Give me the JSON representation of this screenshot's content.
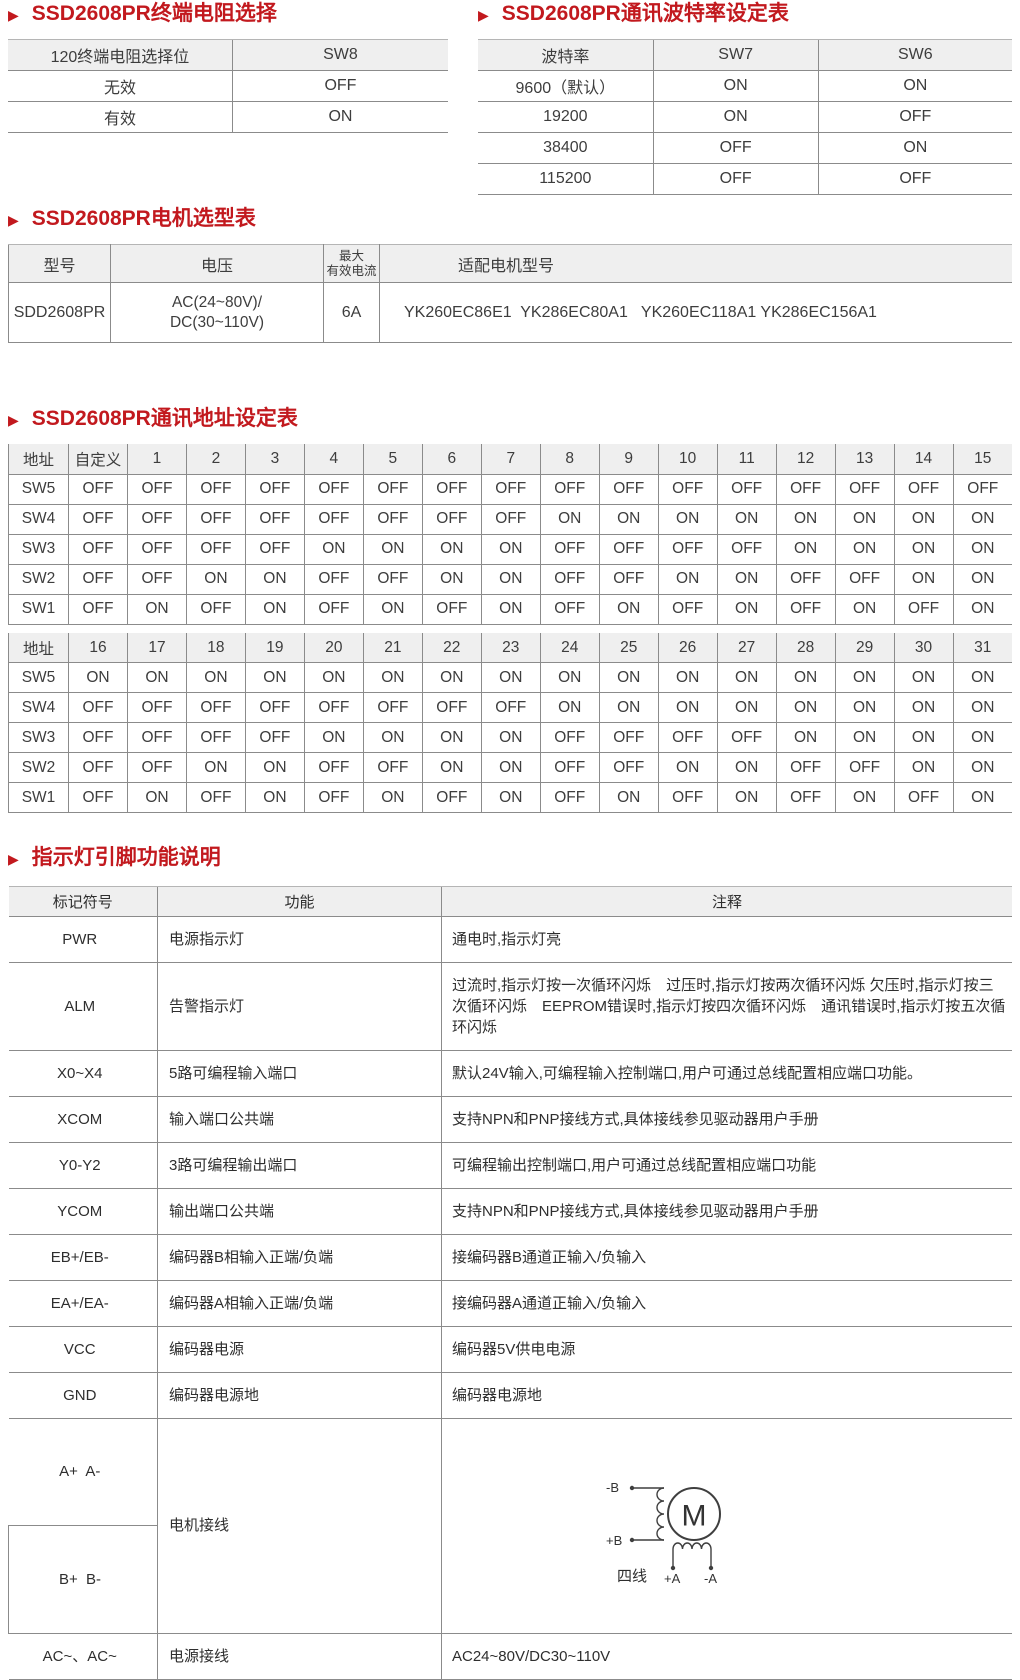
{
  "page": {
    "background": "#ffffff",
    "accent_color": "#c2191e"
  },
  "sections": {
    "terminal": {
      "title": "SSD2608PR终端电阻选择",
      "headers": [
        "120终端电阻选择位",
        "SW8"
      ],
      "rows": [
        [
          "无效",
          "OFF"
        ],
        [
          "有效",
          "ON"
        ]
      ]
    },
    "baud": {
      "title": "SSD2608PR通讯波特率设定表",
      "headers": [
        "波特率",
        "SW7",
        "SW6"
      ],
      "rows": [
        [
          "9600（默认）",
          "ON",
          "ON"
        ],
        [
          "19200",
          "ON",
          "OFF"
        ],
        [
          "38400",
          "OFF",
          "ON"
        ],
        [
          "115200",
          "OFF",
          "OFF"
        ]
      ]
    },
    "motor": {
      "title": "SSD2608PR电机选型表",
      "headers": [
        "型号",
        "电压",
        "最大\n有效电流",
        "适配电机型号"
      ],
      "rows": [
        [
          "SDD2608PR",
          "AC(24~80V)/\nDC(30~110V)",
          "6A",
          "YK260EC86E1  YK286EC80A1   YK260EC118A1 YK286EC156A1"
        ]
      ]
    },
    "address": {
      "title": "SSD2608PR通讯地址设定表",
      "section1": {
        "headers": [
          "地址",
          "自定义",
          "1",
          "2",
          "3",
          "4",
          "5",
          "6",
          "7",
          "8",
          "9",
          "10",
          "11",
          "12",
          "13",
          "14",
          "15"
        ],
        "rows": [
          [
            "SW5",
            "OFF",
            "OFF",
            "OFF",
            "OFF",
            "OFF",
            "OFF",
            "OFF",
            "OFF",
            "OFF",
            "OFF",
            "OFF",
            "OFF",
            "OFF",
            "OFF",
            "OFF",
            "OFF"
          ],
          [
            "SW4",
            "OFF",
            "OFF",
            "OFF",
            "OFF",
            "OFF",
            "OFF",
            "OFF",
            "OFF",
            "ON",
            "ON",
            "ON",
            "ON",
            "ON",
            "ON",
            "ON",
            "ON"
          ],
          [
            "SW3",
            "OFF",
            "OFF",
            "OFF",
            "OFF",
            "ON",
            "ON",
            "ON",
            "ON",
            "OFF",
            "OFF",
            "OFF",
            "OFF",
            "ON",
            "ON",
            "ON",
            "ON"
          ],
          [
            "SW2",
            "OFF",
            "OFF",
            "ON",
            "ON",
            "OFF",
            "OFF",
            "ON",
            "ON",
            "OFF",
            "OFF",
            "ON",
            "ON",
            "OFF",
            "OFF",
            "ON",
            "ON"
          ],
          [
            "SW1",
            "OFF",
            "ON",
            "OFF",
            "ON",
            "OFF",
            "ON",
            "OFF",
            "ON",
            "OFF",
            "ON",
            "OFF",
            "ON",
            "OFF",
            "ON",
            "OFF",
            "ON"
          ]
        ]
      },
      "section2": {
        "headers": [
          "地址",
          "16",
          "17",
          "18",
          "19",
          "20",
          "21",
          "22",
          "23",
          "24",
          "25",
          "26",
          "27",
          "28",
          "29",
          "30",
          "31"
        ],
        "rows": [
          [
            "SW5",
            "ON",
            "ON",
            "ON",
            "ON",
            "ON",
            "ON",
            "ON",
            "ON",
            "ON",
            "ON",
            "ON",
            "ON",
            "ON",
            "ON",
            "ON",
            "ON"
          ],
          [
            "SW4",
            "OFF",
            "OFF",
            "OFF",
            "OFF",
            "OFF",
            "OFF",
            "OFF",
            "OFF",
            "ON",
            "ON",
            "ON",
            "ON",
            "ON",
            "ON",
            "ON",
            "ON"
          ],
          [
            "SW3",
            "OFF",
            "OFF",
            "OFF",
            "OFF",
            "ON",
            "ON",
            "ON",
            "ON",
            "OFF",
            "OFF",
            "OFF",
            "OFF",
            "ON",
            "ON",
            "ON",
            "ON"
          ],
          [
            "SW2",
            "OFF",
            "OFF",
            "ON",
            "ON",
            "OFF",
            "OFF",
            "ON",
            "ON",
            "OFF",
            "OFF",
            "ON",
            "ON",
            "OFF",
            "OFF",
            "ON",
            "ON"
          ],
          [
            "SW1",
            "OFF",
            "ON",
            "OFF",
            "ON",
            "OFF",
            "ON",
            "OFF",
            "ON",
            "OFF",
            "ON",
            "OFF",
            "ON",
            "OFF",
            "ON",
            "OFF",
            "ON"
          ]
        ]
      }
    },
    "pins": {
      "title": "指示灯引脚功能说明",
      "headers": [
        "标记符号",
        "功能",
        "注释"
      ],
      "rows": [
        [
          "PWR",
          "电源指示灯",
          "通电时,指示灯亮"
        ],
        [
          "ALM",
          "告警指示灯",
          "过流时,指示灯按一次循环闪烁　过压时,指示灯按两次循环闪烁 欠压时,指示灯按三次循环闪烁　EEPROM错误时,指示灯按四次循环闪烁　通讯错误时,指示灯按五次循环闪烁"
        ],
        [
          "X0~X4",
          "5路可编程输入端口",
          "默认24V输入,可编程输入控制端口,用户可通过总线配置相应端口功能。"
        ],
        [
          "XCOM",
          "输入端口公共端",
          "支持NPN和PNP接线方式,具体接线参见驱动器用户手册"
        ],
        [
          "Y0-Y2",
          "3路可编程输出端口",
          "可编程输出控制端口,用户可通过总线配置相应端口功能"
        ],
        [
          "YCOM",
          "输出端口公共端",
          "支持NPN和PNP接线方式,具体接线参见驱动器用户手册"
        ],
        [
          "EB+/EB-",
          "编码器B相输入正端/负端",
          "接编码器B通道正输入/负输入"
        ],
        [
          "EA+/EA-",
          "编码器A相输入正端/负端",
          "接编码器A通道正输入/负输入"
        ],
        [
          "VCC",
          "编码器电源",
          "编码器5V供电电源"
        ],
        [
          "GND",
          "编码器电源地",
          "编码器电源地"
        ]
      ],
      "motor_wiring": {
        "row1_symbol": "A+  A-",
        "row2_symbol": "B+  B-",
        "function": "电机接线",
        "diagram": {
          "b_minus": "-B",
          "b_plus": "+B",
          "motor": "M",
          "four_wire": "四线",
          "a_plus": "+A",
          "a_minus": "-A"
        }
      },
      "power_row": [
        "AC~、AC~",
        "电源接线",
        "AC24~80V/DC30~110V"
      ]
    }
  }
}
